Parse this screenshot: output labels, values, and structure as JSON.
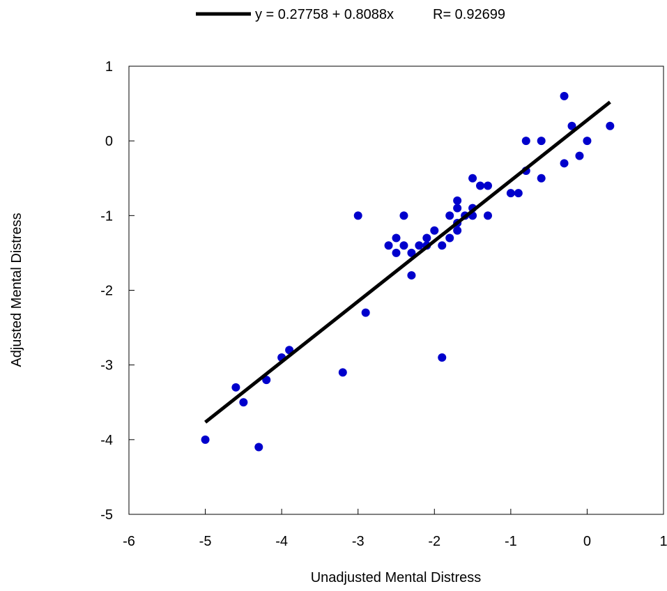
{
  "legend": {
    "equation": "y = 0.27758 + 0.8088x",
    "r_label": "R= 0.92699"
  },
  "chart_data": {
    "type": "scatter",
    "xlabel": "Unadjusted Mental Distress",
    "ylabel": "Adjusted Mental Distress",
    "xlim": [
      -6,
      1
    ],
    "ylim": [
      -5,
      1
    ],
    "xticks": [
      "-6",
      "-5",
      "-4",
      "-3",
      "-2",
      "-1",
      "0",
      "1"
    ],
    "yticks": [
      "1",
      "0",
      "-1",
      "-2",
      "-3",
      "-4",
      "-5"
    ],
    "grid": false,
    "legend_position": "top-center",
    "colors": {
      "points": "#0000CC",
      "fit_line": "#000000",
      "frame": "#000000"
    },
    "series": [
      {
        "points": [
          [
            -5.0,
            -4.0
          ],
          [
            -4.6,
            -3.3
          ],
          [
            -4.5,
            -3.5
          ],
          [
            -4.3,
            -4.1
          ],
          [
            -4.2,
            -3.2
          ],
          [
            -4.0,
            -2.9
          ],
          [
            -3.9,
            -2.8
          ],
          [
            -3.2,
            -3.1
          ],
          [
            -3.0,
            -1.0
          ],
          [
            -2.9,
            -2.3
          ],
          [
            -2.6,
            -1.4
          ],
          [
            -2.5,
            -1.3
          ],
          [
            -2.5,
            -1.5
          ],
          [
            -2.4,
            -1.0
          ],
          [
            -2.4,
            -1.4
          ],
          [
            -2.3,
            -1.5
          ],
          [
            -2.3,
            -1.8
          ],
          [
            -2.2,
            -1.4
          ],
          [
            -2.1,
            -1.4
          ],
          [
            -2.1,
            -1.3
          ],
          [
            -2.0,
            -1.2
          ],
          [
            -1.9,
            -1.4
          ],
          [
            -1.9,
            -2.9
          ],
          [
            -1.8,
            -1.0
          ],
          [
            -1.8,
            -1.3
          ],
          [
            -1.7,
            -0.8
          ],
          [
            -1.7,
            -0.9
          ],
          [
            -1.7,
            -1.1
          ],
          [
            -1.7,
            -1.2
          ],
          [
            -1.6,
            -1.0
          ],
          [
            -1.5,
            -0.5
          ],
          [
            -1.5,
            -0.9
          ],
          [
            -1.5,
            -1.0
          ],
          [
            -1.4,
            -0.6
          ],
          [
            -1.3,
            -0.6
          ],
          [
            -1.3,
            -1.0
          ],
          [
            -1.0,
            -0.7
          ],
          [
            -0.9,
            -0.7
          ],
          [
            -0.8,
            0.0
          ],
          [
            -0.8,
            -0.4
          ],
          [
            -0.6,
            0.0
          ],
          [
            -0.6,
            -0.5
          ],
          [
            -0.3,
            0.6
          ],
          [
            -0.3,
            -0.3
          ],
          [
            -0.2,
            0.2
          ],
          [
            -0.1,
            -0.2
          ],
          [
            0.0,
            0.0
          ],
          [
            0.3,
            0.2
          ]
        ]
      }
    ],
    "fit": {
      "intercept": 0.27758,
      "slope": 0.8088,
      "x_range": [
        -5.0,
        0.3
      ]
    }
  }
}
